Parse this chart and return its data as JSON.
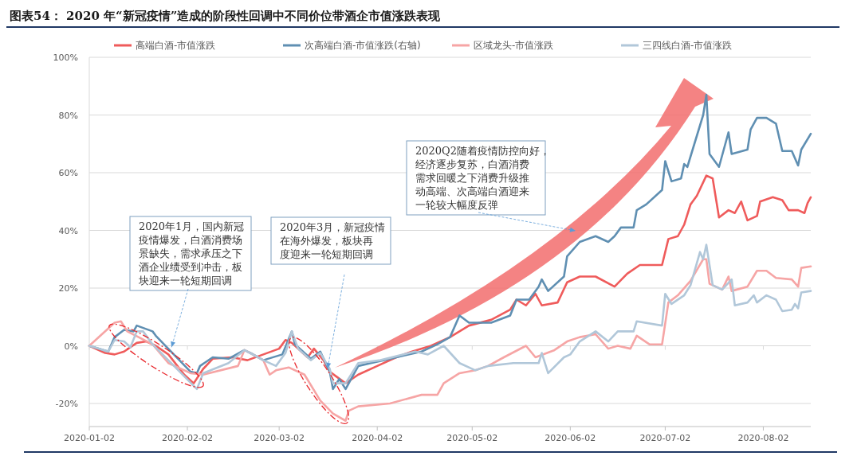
{
  "chart_data": {
    "type": "line",
    "title": "图表54： 2020 年“新冠疫情”造成的阶段性回调中不同价位带酒企市值涨跌表现",
    "xlim": [
      "2020-01-02",
      "2020-08-17"
    ],
    "xticks": [
      "2020-01-02",
      "2020-02-02",
      "2020-03-02",
      "2020-04-02",
      "2020-05-02",
      "2020-06-02",
      "2020-07-02",
      "2020-08-02"
    ],
    "ylim": [
      -28,
      100
    ],
    "yticks": [
      {
        "value": -20,
        "label": "-20%"
      },
      {
        "value": 0,
        "label": "0%"
      },
      {
        "value": 20,
        "label": "20%"
      },
      {
        "value": 40,
        "label": "40%"
      },
      {
        "value": 60,
        "label": "60%"
      },
      {
        "value": 80,
        "label": "80%"
      },
      {
        "value": 100,
        "label": "100%"
      }
    ],
    "grid": "y",
    "legend": "top",
    "series": [
      {
        "name": "高端白酒-市值涨跌",
        "color": "#ef5b5b",
        "x": [
          "2020-01-02",
          "2020-01-07",
          "2020-01-10",
          "2020-01-13",
          "2020-01-17",
          "2020-01-20",
          "2020-01-23",
          "2020-01-27",
          "2020-02-01",
          "2020-02-04",
          "2020-02-07",
          "2020-02-10",
          "2020-02-16",
          "2020-02-21",
          "2020-02-26",
          "2020-03-02",
          "2020-03-04",
          "2020-03-06",
          "2020-03-09",
          "2020-03-11",
          "2020-03-13",
          "2020-03-16",
          "2020-03-18",
          "2020-03-23",
          "2020-03-27",
          "2020-04-02",
          "2020-04-08",
          "2020-04-13",
          "2020-04-19",
          "2020-04-25",
          "2020-05-01",
          "2020-05-08",
          "2020-05-14",
          "2020-05-16",
          "2020-05-19",
          "2020-05-22",
          "2020-05-24",
          "2020-05-29",
          "2020-06-01",
          "2020-06-05",
          "2020-06-10",
          "2020-06-16",
          "2020-06-20",
          "2020-06-24",
          "2020-07-01",
          "2020-07-03",
          "2020-07-06",
          "2020-07-08",
          "2020-07-10",
          "2020-07-12",
          "2020-07-15",
          "2020-07-17",
          "2020-07-19",
          "2020-07-22",
          "2020-07-24",
          "2020-07-26",
          "2020-07-28",
          "2020-07-31",
          "2020-08-01",
          "2020-08-05",
          "2020-08-08",
          "2020-08-10",
          "2020-08-13",
          "2020-08-15",
          "2020-08-16",
          "2020-08-17"
        ],
        "values": [
          0,
          -2.5,
          -3,
          -2,
          1,
          1.5,
          0,
          -3,
          -10,
          -13,
          -8,
          -4.5,
          -4,
          -5,
          -3,
          -1,
          2,
          1,
          -2,
          -4,
          -1,
          -5,
          -9,
          -13,
          -10,
          -7,
          -4,
          -2,
          0,
          3,
          7,
          9,
          12.5,
          16,
          14,
          18,
          14,
          15,
          22,
          24,
          24,
          20.5,
          25,
          28,
          28,
          37,
          38,
          42,
          49,
          52,
          59,
          58,
          44.5,
          47,
          46,
          50,
          43.5,
          45,
          50,
          51.5,
          50.5,
          47,
          47,
          46,
          49.5,
          51.5
        ]
      },
      {
        "name": "次高端白酒-市值涨跌(右轴)",
        "color": "#5f8fb2",
        "x": [
          "2020-01-02",
          "2020-01-08",
          "2020-01-10",
          "2020-01-13",
          "2020-01-16",
          "2020-01-17",
          "2020-01-22",
          "2020-01-23",
          "2020-02-03",
          "2020-02-05",
          "2020-02-06",
          "2020-02-10",
          "2020-02-15",
          "2020-02-20",
          "2020-02-22",
          "2020-02-26",
          "2020-03-03",
          "2020-03-06",
          "2020-03-07",
          "2020-03-10",
          "2020-03-12",
          "2020-03-15",
          "2020-03-18",
          "2020-03-19",
          "2020-03-21",
          "2020-03-23",
          "2020-03-27",
          "2020-03-31",
          "2020-04-04",
          "2020-04-16",
          "2020-04-21",
          "2020-04-25",
          "2020-04-28",
          "2020-05-01",
          "2020-05-08",
          "2020-05-14",
          "2020-05-16",
          "2020-05-20",
          "2020-05-23",
          "2020-05-24",
          "2020-05-26",
          "2020-05-31",
          "2020-06-01",
          "2020-06-05",
          "2020-06-10",
          "2020-06-14",
          "2020-06-16",
          "2020-06-18",
          "2020-06-22",
          "2020-06-23",
          "2020-06-26",
          "2020-07-01",
          "2020-07-02",
          "2020-07-04",
          "2020-07-07",
          "2020-07-08",
          "2020-07-09",
          "2020-07-14",
          "2020-07-15",
          "2020-07-16",
          "2020-07-19",
          "2020-07-22",
          "2020-07-23",
          "2020-07-28",
          "2020-07-29",
          "2020-07-31",
          "2020-08-03",
          "2020-08-06",
          "2020-08-08",
          "2020-08-11",
          "2020-08-13",
          "2020-08-14",
          "2020-08-17"
        ],
        "values": [
          0,
          -2,
          3,
          5.5,
          5,
          7,
          5,
          3.5,
          -9,
          -9.5,
          -7,
          -4,
          -4.5,
          -1.5,
          -2.5,
          -5,
          -3,
          5,
          0.5,
          -2.5,
          -4.5,
          -2,
          -9,
          -15,
          -11.5,
          -15,
          -7,
          -6,
          -5,
          -2,
          0.5,
          3,
          10.5,
          8,
          8,
          10.5,
          16,
          16,
          20.5,
          23,
          19,
          24,
          31,
          36,
          38,
          36,
          38,
          41,
          41,
          47,
          49,
          54,
          64,
          57,
          58,
          63,
          62,
          80,
          87,
          66.5,
          62,
          74,
          66.5,
          68,
          75,
          79,
          79,
          77,
          67.5,
          67.5,
          62.5,
          68,
          73.5
        ]
      },
      {
        "name": "区域龙头-市值涨跌",
        "color": "#f6a5a5",
        "x": [
          "2020-01-02",
          "2020-01-10",
          "2020-01-12",
          "2020-01-14",
          "2020-01-22",
          "2020-01-27",
          "2020-02-03",
          "2020-02-07",
          "2020-02-18",
          "2020-02-20",
          "2020-02-26",
          "2020-02-28",
          "2020-03-01",
          "2020-03-05",
          "2020-03-10",
          "2020-03-15",
          "2020-03-19",
          "2020-03-23",
          "2020-03-24",
          "2020-03-27",
          "2020-04-06",
          "2020-04-16",
          "2020-04-21",
          "2020-04-23",
          "2020-04-28",
          "2020-05-03",
          "2020-05-07",
          "2020-05-12",
          "2020-05-19",
          "2020-05-22",
          "2020-05-28",
          "2020-06-01",
          "2020-06-05",
          "2020-06-10",
          "2020-06-14",
          "2020-06-17",
          "2020-06-21",
          "2020-06-23",
          "2020-06-27",
          "2020-07-01",
          "2020-07-03",
          "2020-07-06",
          "2020-07-10",
          "2020-07-14",
          "2020-07-15",
          "2020-07-16",
          "2020-07-20",
          "2020-07-22",
          "2020-07-23",
          "2020-07-28",
          "2020-07-31",
          "2020-08-03",
          "2020-08-06",
          "2020-08-11",
          "2020-08-13",
          "2020-08-14",
          "2020-08-17"
        ],
        "values": [
          0,
          8,
          8.5,
          5,
          0.5,
          -6,
          -9.5,
          -10,
          -7,
          -1.5,
          -5,
          -10,
          -8.5,
          -7.5,
          -10,
          -19,
          -23.5,
          -26,
          -22.5,
          -21,
          -20,
          -17,
          -17,
          -13,
          -9.5,
          -8.5,
          -7,
          -4,
          0,
          -4,
          -1.5,
          1.5,
          3,
          4,
          -1,
          0,
          -1,
          3.5,
          0.5,
          0.5,
          15,
          17.5,
          22.5,
          30,
          30,
          21.5,
          19.5,
          24,
          19,
          20.5,
          26,
          26,
          23.5,
          23,
          20.5,
          27,
          27.5
        ]
      },
      {
        "name": "三四线白酒-市值涨跌",
        "color": "#b1c7d9",
        "x": [
          "2020-01-02",
          "2020-01-08",
          "2020-01-10",
          "2020-01-13",
          "2020-01-15",
          "2020-01-17",
          "2020-01-19",
          "2020-01-22",
          "2020-02-05",
          "2020-02-07",
          "2020-02-15",
          "2020-02-20",
          "2020-02-26",
          "2020-03-01",
          "2020-03-04",
          "2020-03-06",
          "2020-03-08",
          "2020-03-12",
          "2020-03-15",
          "2020-03-18",
          "2020-03-19",
          "2020-03-23",
          "2020-03-27",
          "2020-04-03",
          "2020-04-14",
          "2020-04-18",
          "2020-04-23",
          "2020-04-28",
          "2020-05-03",
          "2020-05-07",
          "2020-05-15",
          "2020-05-23",
          "2020-05-24",
          "2020-05-26",
          "2020-05-31",
          "2020-06-02",
          "2020-06-05",
          "2020-06-10",
          "2020-06-14",
          "2020-06-17",
          "2020-06-22",
          "2020-06-23",
          "2020-07-01",
          "2020-07-02",
          "2020-07-04",
          "2020-07-08",
          "2020-07-10",
          "2020-07-13",
          "2020-07-14",
          "2020-07-15",
          "2020-07-17",
          "2020-07-20",
          "2020-07-23",
          "2020-07-24",
          "2020-07-28",
          "2020-07-30",
          "2020-07-31",
          "2020-08-03",
          "2020-08-06",
          "2020-08-08",
          "2020-08-11",
          "2020-08-12",
          "2020-08-13",
          "2020-08-14",
          "2020-08-17"
        ],
        "values": [
          0,
          -2,
          2,
          1.5,
          -0.5,
          5,
          5,
          0.5,
          -15,
          -9.5,
          -6,
          -1.5,
          -5,
          -7,
          -2.5,
          5,
          -1,
          -5,
          -2.5,
          -8,
          -13,
          -13,
          -6,
          -5,
          -2,
          -3,
          0,
          -6,
          -8.5,
          -7,
          -6,
          -6,
          -2.5,
          -9.5,
          -4,
          -3,
          1.5,
          5,
          1.5,
          5,
          5,
          8.5,
          7,
          18,
          14.5,
          17.5,
          21,
          32.5,
          30,
          35,
          21,
          19.5,
          23,
          14,
          15,
          17.5,
          15,
          17.5,
          16,
          12,
          12.5,
          14.5,
          13,
          18.5,
          19
        ]
      }
    ],
    "annotations": [
      {
        "text": "2020年1月，国内新冠疫情爆发，白酒消费场景缺失，需求承压之下酒企业绩受到冲击，板块迎来一轮短期回调",
        "x": "2020-01-28",
        "y": -0.5
      },
      "2020年3月，新冠疫情在海外爆发，板块再度迎来一轮短期回调",
      "2020Q2随着疫情防控向好，经济逐步复苏，白酒消费需求回暖之下消费升级推动高端、次高端白酒迎来一轮较大幅度反弹"
    ]
  }
}
